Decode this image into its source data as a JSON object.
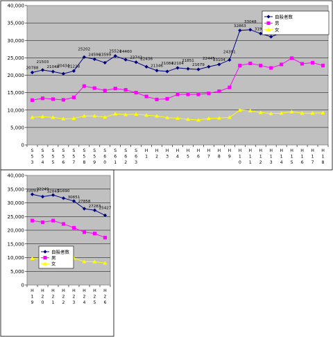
{
  "chart_data": [
    {
      "type": "line",
      "categories": [
        "S53",
        "S54",
        "S55",
        "S56",
        "S57",
        "S58",
        "S59",
        "S60",
        "S61",
        "S62",
        "S63",
        "H1",
        "H2",
        "H3",
        "H4",
        "H5",
        "H6",
        "H7",
        "H8",
        "H9",
        "H10",
        "H11",
        "H12",
        "H13",
        "H14",
        "H15",
        "H16",
        "H17",
        "H18"
      ],
      "category_chars": [
        [
          "S",
          "5",
          "3"
        ],
        [
          "S",
          "5",
          "4"
        ],
        [
          "S",
          "5",
          "5"
        ],
        [
          "S",
          "5",
          "6"
        ],
        [
          "S",
          "5",
          "7"
        ],
        [
          "S",
          "5",
          "8"
        ],
        [
          "S",
          "5",
          "9"
        ],
        [
          "S",
          "6",
          "0"
        ],
        [
          "S",
          "6",
          "1"
        ],
        [
          "S",
          "6",
          "2"
        ],
        [
          "S",
          "6",
          "3"
        ],
        [
          "H",
          "1"
        ],
        [
          "H",
          "2"
        ],
        [
          "H",
          "3"
        ],
        [
          "H",
          "4"
        ],
        [
          "H",
          "5"
        ],
        [
          "H",
          "6"
        ],
        [
          "H",
          "7"
        ],
        [
          "H",
          "8"
        ],
        [
          "H",
          "9"
        ],
        [
          "H",
          "1",
          "0"
        ],
        [
          "H",
          "1",
          "1"
        ],
        [
          "H",
          "1",
          "2"
        ],
        [
          "H",
          "1",
          "3"
        ],
        [
          "H",
          "1",
          "4"
        ],
        [
          "H",
          "1",
          "5"
        ],
        [
          "H",
          "1",
          "6"
        ],
        [
          "H",
          "1",
          "7"
        ],
        [
          "H",
          "1",
          "8"
        ]
      ],
      "ylim": [
        0,
        40000
      ],
      "yticks": [
        "0",
        "5,000",
        "10,000",
        "15,000",
        "20,000",
        "25,000",
        "30,000",
        "35,000",
        "40,000"
      ],
      "grid": true,
      "legend_position": "top-right",
      "series": [
        {
          "name": "自殺者数",
          "color": "#000080",
          "marker": "diamond",
          "values": [
            20788,
            21503,
            21048,
            20434,
            21228,
            25202,
            24596,
            23599,
            25524,
            24460,
            23742,
            22436,
            21346,
            21084,
            22104,
            21851,
            21679,
            22445,
            23104,
            24391,
            32863,
            33048,
            31957,
            31042,
            32143,
            34427,
            32325,
            32552,
            32155
          ],
          "labels": [
            "20788",
            "21503",
            "21048",
            "20434",
            "21228",
            "25202",
            "24596",
            "23599",
            "25524",
            "24460",
            "23742",
            "22436",
            "21346",
            "21084",
            "22104",
            "21851",
            "21679",
            "22445",
            "23104",
            "24391",
            "32863",
            "33048",
            "31957",
            "31042",
            "32143",
            "34427",
            "32325",
            "32552",
            "32155"
          ]
        },
        {
          "name": "男",
          "color": "#ff00ff",
          "marker": "square",
          "values": [
            12860,
            13380,
            13150,
            12940,
            13650,
            16880,
            16300,
            15620,
            16200,
            15800,
            15000,
            13900,
            13050,
            13250,
            14500,
            14500,
            14500,
            14800,
            15400,
            16500,
            22800,
            23400,
            22800,
            22100,
            23100,
            24900,
            23300,
            23600,
            22800
          ]
        },
        {
          "name": "女",
          "color": "#ffff00",
          "marker": "triangle",
          "values": [
            7920,
            8120,
            7900,
            7500,
            7580,
            8320,
            8300,
            7980,
            8900,
            8700,
            8800,
            8540,
            8300,
            7830,
            7660,
            7370,
            7150,
            7600,
            7700,
            7890,
            10000,
            9800,
            9300,
            9000,
            9100,
            9500,
            9100,
            9100,
            9200
          ]
        }
      ]
    },
    {
      "type": "line",
      "categories": [
        "H19",
        "H20",
        "H21",
        "H22",
        "H23",
        "H24",
        "H25",
        "H26"
      ],
      "category_chars": [
        [
          "H",
          "1",
          "9"
        ],
        [
          "H",
          "2",
          "0"
        ],
        [
          "H",
          "2",
          "1"
        ],
        [
          "H",
          "2",
          "2"
        ],
        [
          "H",
          "2",
          "3"
        ],
        [
          "H",
          "2",
          "4"
        ],
        [
          "H",
          "2",
          "5"
        ],
        [
          "H",
          "2",
          "6"
        ]
      ],
      "ylim": [
        0,
        40000
      ],
      "yticks": [
        "0",
        "5,000",
        "10,000",
        "15,000",
        "20,000",
        "25,000",
        "30,000",
        "35,000",
        "40,000"
      ],
      "grid": true,
      "legend_position": "center-left",
      "series": [
        {
          "name": "自殺者数",
          "color": "#000080",
          "marker": "diamond",
          "values": [
            33093,
            32249,
            32845,
            31690,
            30651,
            27858,
            27283,
            25427
          ],
          "labels": [
            "33093",
            "32249",
            "32845",
            "31690",
            "30651",
            "27858",
            "27283",
            "25427"
          ]
        },
        {
          "name": "男",
          "color": "#ff00ff",
          "marker": "square",
          "values": [
            23500,
            22900,
            23500,
            22300,
            20900,
            19300,
            18800,
            17300
          ]
        },
        {
          "name": "女",
          "color": "#ffff00",
          "marker": "triangle",
          "values": [
            9700,
            9500,
            9500,
            9500,
            9800,
            8500,
            8500,
            8000
          ]
        }
      ]
    }
  ]
}
